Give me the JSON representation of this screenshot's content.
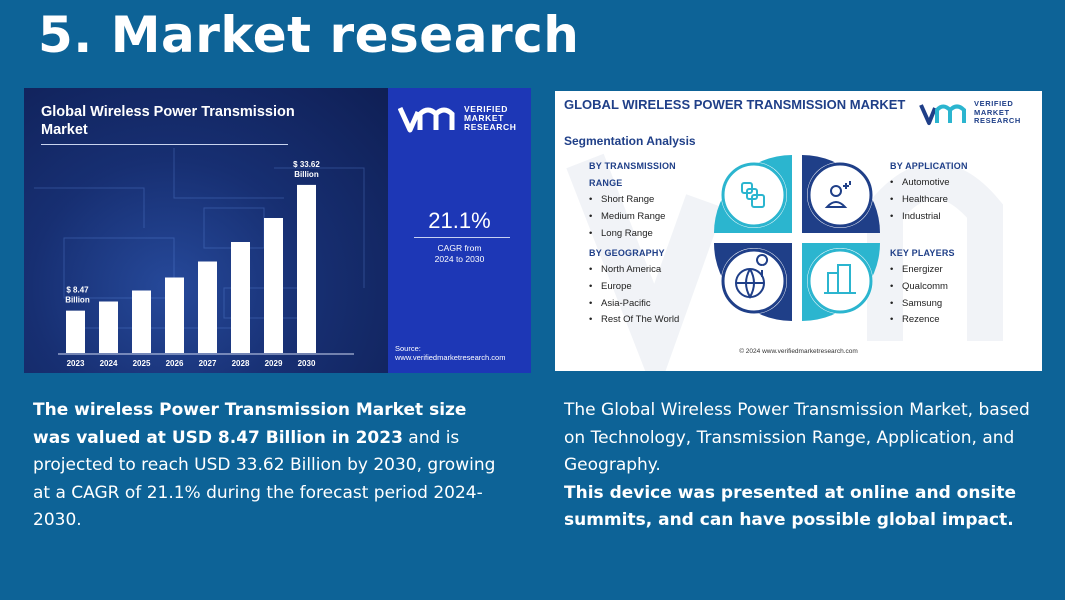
{
  "slide": {
    "title": "5. Market research"
  },
  "left_image": {
    "title": "Global Wireless Power Transmission Market",
    "brand_lines": [
      "VERIFIED",
      "MARKET",
      "RESEARCH"
    ],
    "cagr_value": "21.1%",
    "cagr_label_1": "CAGR from",
    "cagr_label_2": "2024 to 2030",
    "source_label": "Source:",
    "source_url": "www.verifiedmarketresearch.com",
    "colors": {
      "panel": "#14245a",
      "side": "#1d37b6",
      "bar": "#ffffff"
    }
  },
  "chart_data": {
    "type": "bar",
    "title": "Global Wireless Power Transmission Market",
    "categories": [
      "2023",
      "2024",
      "2025",
      "2026",
      "2027",
      "2028",
      "2029",
      "2030"
    ],
    "values": [
      8.47,
      10.3,
      12.5,
      15.1,
      18.3,
      22.2,
      27.0,
      33.62
    ],
    "data_labels": [
      {
        "index": 0,
        "line1": "$ 8.47",
        "line2": "Billion"
      },
      {
        "index": 7,
        "line1": "$ 33.62",
        "line2": "Billion"
      }
    ],
    "ylim": [
      0,
      40
    ],
    "xlabel": "",
    "ylabel": "",
    "grid": false
  },
  "right_image": {
    "title": "GLOBAL WIRELESS POWER TRANSMISSION MARKET",
    "subtitle": "Segmentation Analysis",
    "brand_lines": [
      "VERIFIED",
      "MARKET",
      "RESEARCH"
    ],
    "transmission": {
      "head1": "BY TRANSMISSION",
      "head2": "RANGE",
      "items": [
        "Short Range",
        "Medium Range",
        "Long Range"
      ]
    },
    "geography": {
      "head": "BY GEOGRAPHY",
      "items": [
        "North America",
        "Europe",
        "Asia-Pacific",
        "Rest Of The World"
      ]
    },
    "application": {
      "head": "BY APPLICATION",
      "items": [
        "Automotive",
        "Healthcare",
        "Industrial"
      ]
    },
    "players": {
      "head": "KEY PLAYERS",
      "items": [
        "Energizer",
        "Qualcomm",
        "Samsung",
        "Rezence"
      ]
    },
    "icons": [
      "chips-icon",
      "person-signal-icon",
      "globe-pin-icon",
      "buildings-icon"
    ],
    "copyright": "© 2024 www.verifiedmarketresearch.com",
    "colors": {
      "teal": "#2bb5cf",
      "navy": "#1f3f88"
    }
  },
  "text_left": {
    "bold_part": "The wireless Power Transmission Market size was valued at USD 8.47 Billion in 2023",
    "normal_part": " and is projected to reach USD 33.62 Billion by 2030, growing at a CAGR of 21.1% during the forecast period 2024-2030."
  },
  "text_right": {
    "normal_part": "The Global Wireless Power Transmission Market, based on Technology, Transmission Range, Application, and Geography.",
    "bold_part": "This device was presented at online and onsite summits,  and can have possible global impact."
  }
}
